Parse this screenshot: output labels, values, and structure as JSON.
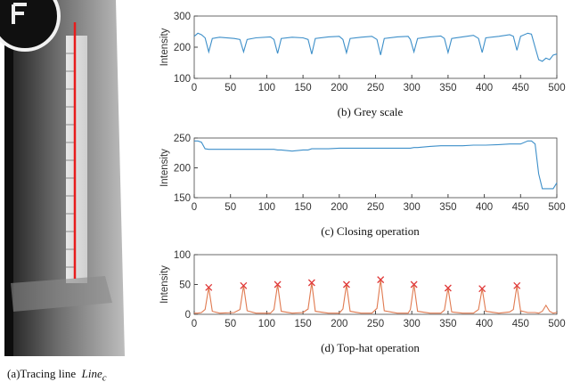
{
  "figure_a": {
    "caption": "(a)Tracing line",
    "symbol": "Line",
    "subscript": "c"
  },
  "chart_data": [
    {
      "type": "line",
      "title": "(b) Grey scale",
      "ylabel": "Intensity",
      "x": [
        0,
        5,
        10,
        15,
        20,
        25,
        35,
        55,
        63,
        68,
        73,
        85,
        105,
        110,
        115,
        120,
        135,
        150,
        157,
        162,
        167,
        185,
        200,
        205,
        210,
        215,
        230,
        245,
        252,
        257,
        262,
        280,
        295,
        298,
        303,
        308,
        325,
        340,
        345,
        350,
        355,
        370,
        385,
        392,
        397,
        402,
        420,
        435,
        440,
        445,
        450,
        460,
        465,
        470,
        475,
        480,
        485,
        490,
        495,
        500
      ],
      "series": [
        {
          "color": "#3d8fc9",
          "values": [
            235,
            245,
            240,
            230,
            185,
            228,
            232,
            228,
            225,
            185,
            225,
            230,
            233,
            225,
            180,
            228,
            232,
            230,
            225,
            178,
            228,
            233,
            235,
            225,
            182,
            228,
            232,
            235,
            225,
            175,
            228,
            233,
            235,
            225,
            185,
            228,
            233,
            236,
            228,
            183,
            228,
            233,
            238,
            228,
            183,
            230,
            235,
            240,
            235,
            190,
            235,
            245,
            242,
            200,
            160,
            155,
            165,
            160,
            175,
            178
          ]
        }
      ],
      "xlim": [
        0,
        500
      ],
      "xticks": [
        0,
        50,
        100,
        150,
        200,
        250,
        300,
        350,
        400,
        450,
        500
      ],
      "ylim": [
        100,
        300
      ],
      "yticks": [
        100,
        200,
        300
      ]
    },
    {
      "type": "line",
      "title": "(c) Closing operation",
      "ylabel": "Intensity",
      "x": [
        0,
        5,
        10,
        15,
        20,
        25,
        35,
        55,
        63,
        68,
        73,
        85,
        105,
        110,
        115,
        120,
        135,
        150,
        157,
        162,
        167,
        185,
        200,
        205,
        210,
        215,
        230,
        245,
        252,
        257,
        262,
        280,
        295,
        298,
        303,
        308,
        325,
        340,
        345,
        350,
        355,
        370,
        385,
        392,
        397,
        402,
        420,
        435,
        440,
        445,
        450,
        460,
        465,
        470,
        475,
        480,
        485,
        490,
        495,
        500
      ],
      "series": [
        {
          "color": "#3d8fc9",
          "values": [
            245,
            245,
            243,
            232,
            231,
            231,
            231,
            231,
            231,
            231,
            231,
            231,
            231,
            231,
            230,
            230,
            228,
            230,
            230,
            232,
            232,
            232,
            233,
            233,
            233,
            233,
            233,
            233,
            233,
            233,
            233,
            233,
            233,
            233,
            234,
            234,
            236,
            237,
            237,
            237,
            237,
            237,
            238,
            238,
            238,
            238,
            239,
            240,
            240,
            240,
            240,
            245,
            245,
            240,
            190,
            165,
            165,
            165,
            165,
            175
          ]
        }
      ],
      "xlim": [
        0,
        500
      ],
      "xticks": [
        0,
        50,
        100,
        150,
        200,
        250,
        300,
        350,
        400,
        450,
        500
      ],
      "ylim": [
        150,
        250
      ],
      "yticks": [
        150,
        200,
        250
      ]
    },
    {
      "type": "line",
      "title": "(d) Top-hat operation",
      "ylabel": "Intensity",
      "x": [
        0,
        5,
        10,
        15,
        20,
        25,
        35,
        55,
        63,
        68,
        73,
        85,
        105,
        110,
        115,
        120,
        135,
        150,
        157,
        162,
        167,
        185,
        200,
        205,
        210,
        215,
        230,
        245,
        252,
        257,
        262,
        280,
        295,
        298,
        303,
        308,
        325,
        340,
        345,
        350,
        355,
        370,
        385,
        392,
        397,
        402,
        420,
        435,
        440,
        445,
        450,
        460,
        465,
        470,
        475,
        480,
        485,
        490,
        495,
        500
      ],
      "series": [
        {
          "color": "#e07a50",
          "values": [
            2,
            2,
            3,
            8,
            45,
            5,
            2,
            3,
            8,
            48,
            6,
            2,
            2,
            8,
            50,
            5,
            2,
            3,
            9,
            53,
            5,
            2,
            2,
            9,
            50,
            5,
            2,
            2,
            10,
            58,
            6,
            2,
            2,
            8,
            50,
            5,
            2,
            2,
            7,
            44,
            4,
            2,
            2,
            8,
            43,
            5,
            2,
            4,
            8,
            48,
            6,
            3,
            3,
            3,
            2,
            5,
            15,
            5,
            2,
            3
          ]
        }
      ],
      "peaks": {
        "color": "#e03a3a",
        "marker": "x",
        "x": [
          20,
          68,
          115,
          162,
          210,
          257,
          303,
          350,
          397,
          445
        ],
        "values": [
          45,
          48,
          50,
          53,
          50,
          58,
          50,
          44,
          43,
          48
        ]
      },
      "xlim": [
        0,
        500
      ],
      "xticks": [
        0,
        50,
        100,
        150,
        200,
        250,
        300,
        350,
        400,
        450,
        500
      ],
      "ylim": [
        0,
        100
      ],
      "yticks": [
        0,
        50,
        100
      ]
    }
  ]
}
